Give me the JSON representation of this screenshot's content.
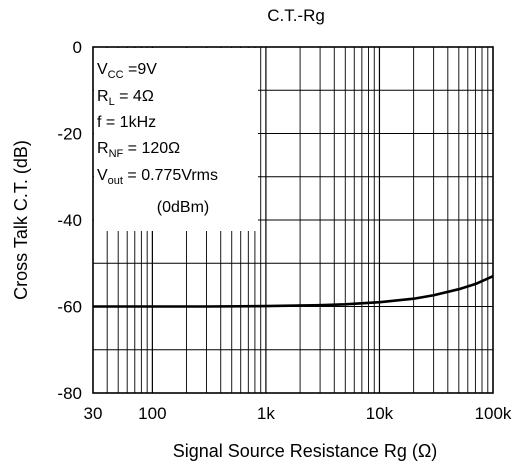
{
  "chart_data": {
    "type": "line",
    "title": "C.T.-Rg",
    "xlabel": "Signal Source Resistance Rg (Ω)",
    "ylabel": "Cross Talk C.T. (dB)",
    "x_scale": "log",
    "xlim": [
      30,
      100000
    ],
    "ylim": [
      -80,
      0
    ],
    "x_ticks": [
      {
        "value": 30,
        "label": "30"
      },
      {
        "value": 100,
        "label": "100"
      },
      {
        "value": 1000,
        "label": "1k"
      },
      {
        "value": 10000,
        "label": "10k"
      },
      {
        "value": 100000,
        "label": "100k"
      }
    ],
    "y_ticks": [
      {
        "value": 0,
        "label": "0"
      },
      {
        "value": -20,
        "label": "-20"
      },
      {
        "value": -40,
        "label": "-40"
      },
      {
        "value": -60,
        "label": "-60"
      },
      {
        "value": -80,
        "label": "-80"
      }
    ],
    "grid": true,
    "series": [
      {
        "x": [
          30,
          100,
          300,
          1000,
          3000,
          5000,
          10000,
          20000,
          30000,
          50000,
          70000,
          100000
        ],
        "y": [
          -60,
          -60,
          -60,
          -59.9,
          -59.7,
          -59.5,
          -59,
          -58.2,
          -57.4,
          -56,
          -54.8,
          -53
        ]
      }
    ],
    "conditions": {
      "lines": [
        {
          "main": "V",
          "sub": "CC",
          "rest": " =9V"
        },
        {
          "main": "R",
          "sub": "L",
          "rest": " = 4Ω"
        },
        {
          "main": "f = 1kHz",
          "sub": "",
          "rest": ""
        },
        {
          "main": "R",
          "sub": "NF",
          "rest": " = 120Ω"
        },
        {
          "main": "V",
          "sub": "out",
          "rest": " = 0.775Vrms"
        },
        {
          "main": "(0dBm)",
          "sub": "",
          "rest": ""
        }
      ]
    }
  }
}
